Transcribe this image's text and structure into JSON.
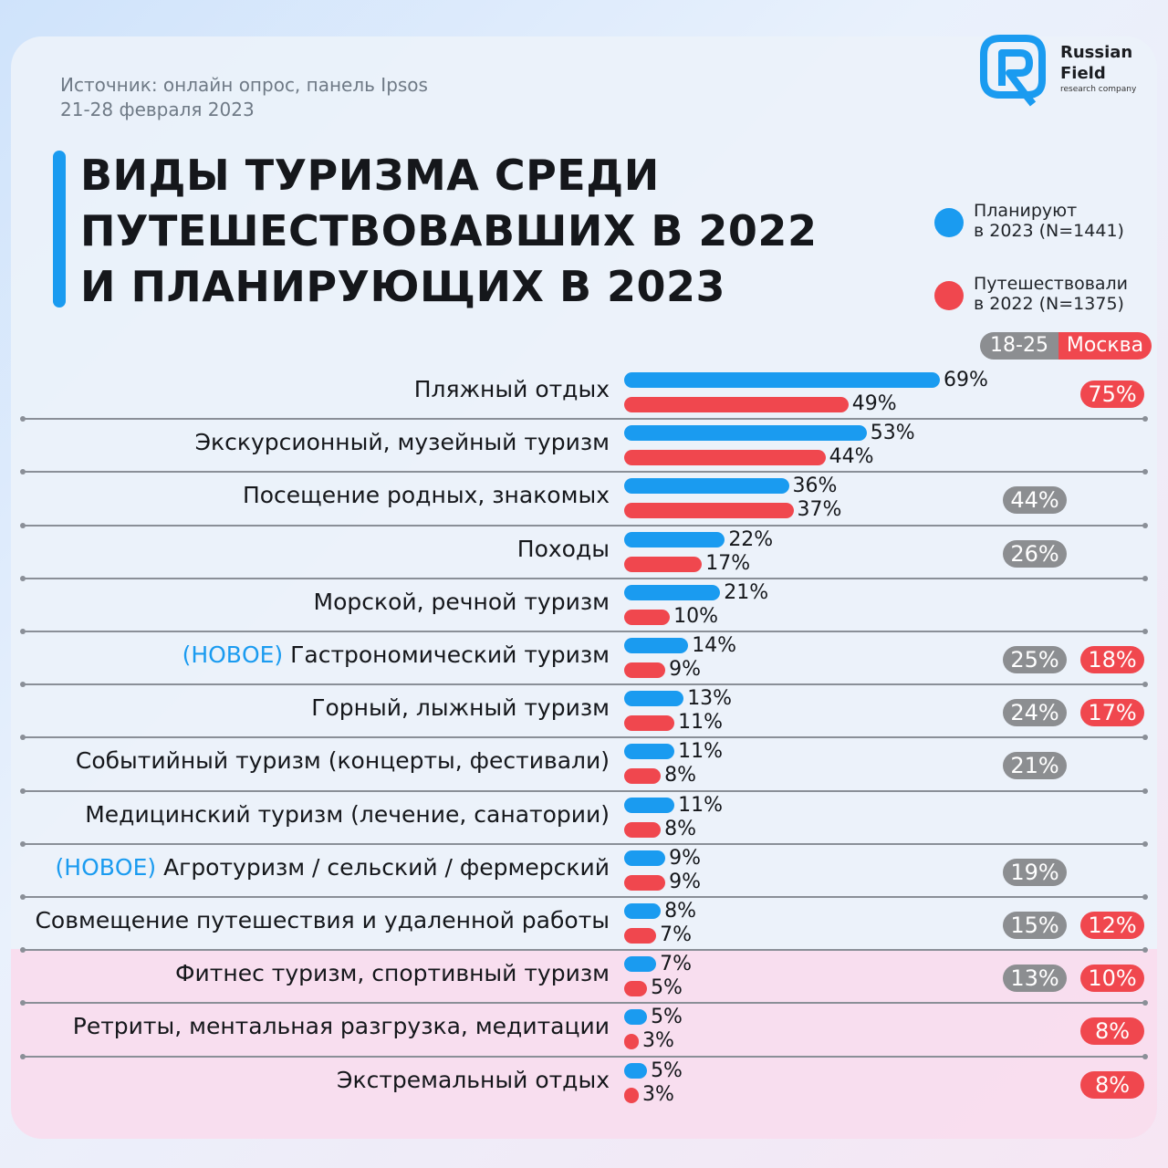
{
  "source": {
    "line1": "Источник: онлайн опрос, панель Ipsos",
    "line2": "21-28 февраля 2023"
  },
  "title": {
    "line1": "ВИДЫ ТУРИЗМА СРЕДИ",
    "line2": "ПУТЕШЕСТВОВАВШИХ В 2022",
    "line3": "И ПЛАНИРУЮЩИХ В 2023"
  },
  "logo": {
    "name_line1": "Russian",
    "name_line2": "Field",
    "subtitle": "research company",
    "icon": "rf-logo-icon"
  },
  "legend": {
    "plan": {
      "line1": "Планируют",
      "line2": "в 2023 (N=1441)"
    },
    "past": {
      "line1": "Путешествовали",
      "line2": "в 2022 (N=1375)"
    }
  },
  "segments": {
    "age": "18-25",
    "moscow": "Москва"
  },
  "colors": {
    "plan": "#1a9bf0",
    "past": "#f0474e",
    "age_badge": "#8c8e91",
    "moscow_badge": "#f0474e",
    "new_tag": "#1a9bf0"
  },
  "chart_data": {
    "type": "bar",
    "orientation": "horizontal",
    "series": [
      {
        "name": "Планируют в 2023 (N=1441)",
        "values": [
          69,
          53,
          36,
          22,
          21,
          14,
          13,
          11,
          11,
          9,
          8,
          7,
          5,
          5
        ]
      },
      {
        "name": "Путешествовали в 2022 (N=1375)",
        "values": [
          49,
          44,
          37,
          17,
          10,
          9,
          11,
          8,
          8,
          9,
          7,
          5,
          3,
          3
        ]
      }
    ],
    "categories": [
      {
        "tag": "",
        "label": "Пляжный отдых",
        "plan": "69%",
        "past": "49%",
        "age": "",
        "moscow": "75%"
      },
      {
        "tag": "",
        "label": "Экскурсионный, музейный туризм",
        "plan": "53%",
        "past": "44%",
        "age": "",
        "moscow": ""
      },
      {
        "tag": "",
        "label": "Посещение родных, знакомых",
        "plan": "36%",
        "past": "37%",
        "age": "44%",
        "moscow": ""
      },
      {
        "tag": "",
        "label": "Походы",
        "plan": "22%",
        "past": "17%",
        "age": "26%",
        "moscow": ""
      },
      {
        "tag": "",
        "label": "Морской, речной туризм",
        "plan": "21%",
        "past": "10%",
        "age": "",
        "moscow": ""
      },
      {
        "tag": "(НОВОЕ)",
        "label": "Гастрономический туризм",
        "plan": "14%",
        "past": "9%",
        "age": "25%",
        "moscow": "18%"
      },
      {
        "tag": "",
        "label": "Горный, лыжный туризм",
        "plan": "13%",
        "past": "11%",
        "age": "24%",
        "moscow": "17%"
      },
      {
        "tag": "",
        "label": "Событийный туризм (концерты, фестивали)",
        "plan": "11%",
        "past": "8%",
        "age": "21%",
        "moscow": ""
      },
      {
        "tag": "",
        "label": "Медицинский туризм (лечение, санатории)",
        "plan": "11%",
        "past": "8%",
        "age": "",
        "moscow": ""
      },
      {
        "tag": "(НОВОЕ)",
        "label": "Агротуризм / сельский / фермерский",
        "plan": "9%",
        "past": "9%",
        "age": "19%",
        "moscow": ""
      },
      {
        "tag": "",
        "label": "Совмещение путешествия и удаленной работы",
        "plan": "8%",
        "past": "7%",
        "age": "15%",
        "moscow": "12%"
      },
      {
        "tag": "",
        "label": "Фитнес туризм, спортивный туризм",
        "plan": "7%",
        "past": "5%",
        "age": "13%",
        "moscow": "10%"
      },
      {
        "tag": "",
        "label": "Ретриты, ментальная разгрузка, медитации",
        "plan": "5%",
        "past": "3%",
        "age": "",
        "moscow": "8%"
      },
      {
        "tag": "",
        "label": "Экстремальный отдых",
        "plan": "5%",
        "past": "3%",
        "age": "",
        "moscow": "8%"
      }
    ],
    "xlim": [
      0,
      69
    ]
  }
}
